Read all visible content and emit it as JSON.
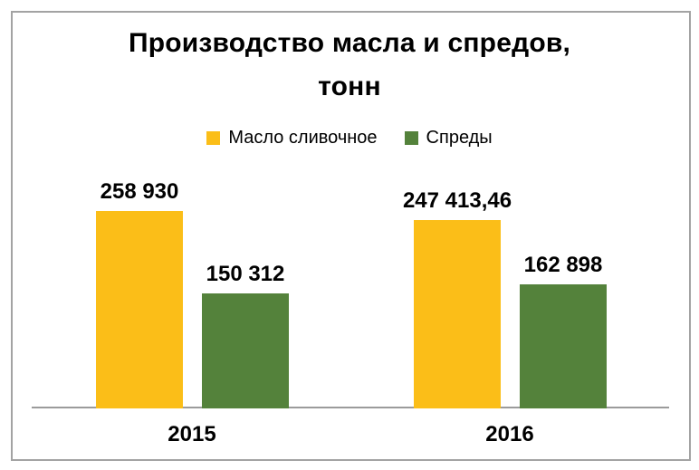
{
  "chart_data": {
    "type": "bar",
    "title": "Производство масла и спредов, тонн",
    "title_lines": [
      "Производство масла и спредов,",
      "тонн"
    ],
    "categories": [
      "2015",
      "2016"
    ],
    "series": [
      {
        "name": "Масло сливочное",
        "color": "#FBBE18",
        "values": [
          258930,
          247413.46
        ],
        "display_values": [
          "258 930",
          "247 413,46"
        ]
      },
      {
        "name": "Спреды",
        "color": "#54823B",
        "values": [
          150312,
          162898
        ],
        "display_values": [
          "150 312",
          "162 898"
        ]
      }
    ],
    "xlabel": "",
    "ylabel": "",
    "ylim": [
      0,
      258930
    ],
    "grid": false,
    "legend_position": "top-center",
    "data_labels": true,
    "background": "#FFFFFF",
    "frame_border_color": "#A3A3A3",
    "axis_line_color": "#9B9B9B",
    "text_color": "#000000"
  }
}
